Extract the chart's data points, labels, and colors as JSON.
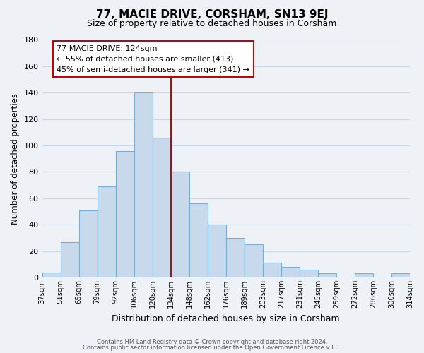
{
  "title": "77, MACIE DRIVE, CORSHAM, SN13 9EJ",
  "subtitle": "Size of property relative to detached houses in Corsham",
  "xlabel": "Distribution of detached houses by size in Corsham",
  "ylabel": "Number of detached properties",
  "bar_labels": [
    "37sqm",
    "51sqm",
    "65sqm",
    "79sqm",
    "92sqm",
    "106sqm",
    "120sqm",
    "134sqm",
    "148sqm",
    "162sqm",
    "176sqm",
    "189sqm",
    "203sqm",
    "217sqm",
    "231sqm",
    "245sqm",
    "259sqm",
    "272sqm",
    "286sqm",
    "300sqm",
    "314sqm"
  ],
  "bar_values": [
    4,
    27,
    51,
    69,
    96,
    140,
    106,
    80,
    56,
    40,
    30,
    25,
    11,
    8,
    6,
    3,
    0,
    3,
    0,
    3
  ],
  "ylim": [
    0,
    180
  ],
  "yticks": [
    0,
    20,
    40,
    60,
    80,
    100,
    120,
    140,
    160,
    180
  ],
  "bar_color": "#c9d9ec",
  "bar_edge_color": "#7aadd4",
  "grid_color": "#c8d8e8",
  "vline_color": "#cc0000",
  "annotation_line1": "77 MACIE DRIVE: 124sqm",
  "annotation_line2": "← 55% of detached houses are smaller (413)",
  "annotation_line3": "45% of semi-detached houses are larger (341) →",
  "annotation_box_edge_color": "#cc0000",
  "footnote1": "Contains HM Land Registry data © Crown copyright and database right 2024.",
  "footnote2": "Contains public sector information licensed under the Open Government Licence v3.0.",
  "background_color": "#eef2f7",
  "plot_bg_color": "#eef2f7"
}
